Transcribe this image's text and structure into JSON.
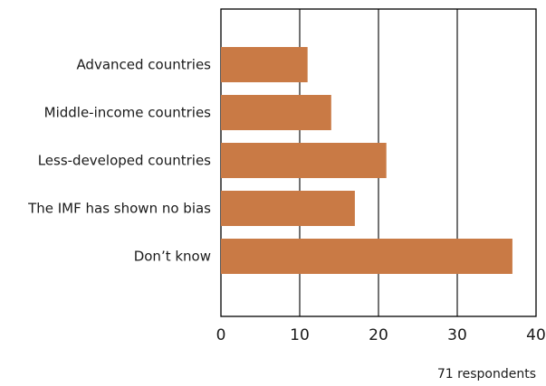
{
  "chart_data": {
    "type": "bar",
    "orientation": "horizontal",
    "categories": [
      "Advanced countries",
      "Middle-income countries",
      "Less-developed countries",
      "The IMF has shown no bias",
      "Don’t know"
    ],
    "values": [
      11,
      14,
      21,
      17,
      37
    ],
    "xlim": [
      0,
      40
    ],
    "xticks": [
      0,
      10,
      20,
      30,
      40
    ],
    "xtick_labels": [
      "0",
      "10",
      "20",
      "30",
      "40"
    ],
    "grid": true,
    "bar_color": "#C97A45",
    "note": "71 respondents"
  }
}
